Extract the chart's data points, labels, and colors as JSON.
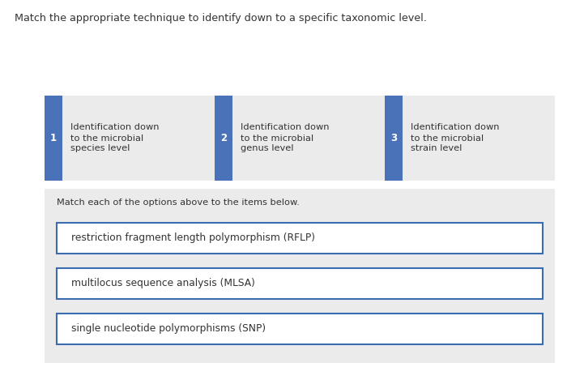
{
  "title": "Match the appropriate technique to identify down to a specific taxonomic level.",
  "background_color": "#ffffff",
  "header_bg": "#ebebeb",
  "section_bg": "#ebebeb",
  "box_border_color": "#3a6baf",
  "badge_color": "#4a72b8",
  "badge_text_color": "#ffffff",
  "text_color": "#333333",
  "options": [
    {
      "number": "1",
      "line1": "Identification down",
      "line2": "to the microbial",
      "line3": "species level"
    },
    {
      "number": "2",
      "line1": "Identification down",
      "line2": "to the microbial",
      "line3": "genus level"
    },
    {
      "number": "3",
      "line1": "Identification down",
      "line2": "to the microbial",
      "line3": "strain level"
    }
  ],
  "match_label": "Match each of the options above to the items below.",
  "items": [
    "restriction fragment length polymorphism (RFLP)",
    "multilocus sequence analysis (MLSA)",
    "single nucleotide polymorphisms (SNP)"
  ],
  "title_fontsize": 9.2,
  "label_fontsize": 8.2,
  "item_fontsize": 8.8,
  "badge_fontsize": 8.5
}
